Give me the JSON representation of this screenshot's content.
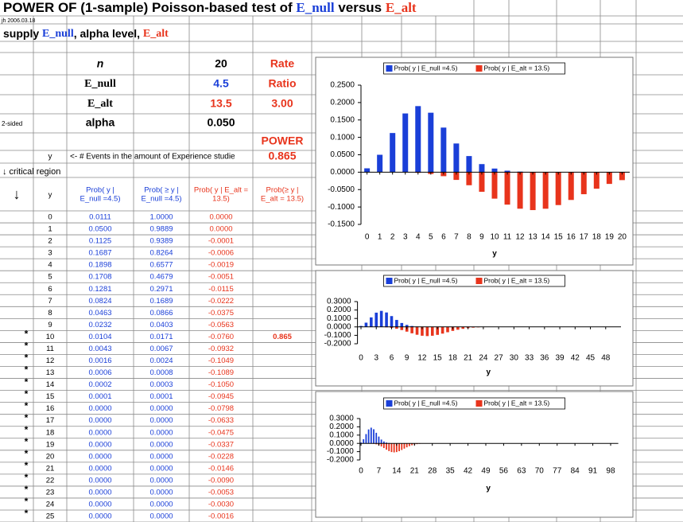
{
  "sheet": {
    "title": [
      "POWER OF (1-sample) Poisson-based test of ",
      "E_null",
      " versus ",
      "E_alt"
    ],
    "author": "jh 2006.03.18",
    "supply": [
      "supply ",
      "E_null",
      ", alpha level, ",
      "E_alt"
    ],
    "params": [
      {
        "label": "n",
        "value": "20",
        "note": "Rate"
      },
      {
        "label": "E_null",
        "value": "4.5",
        "note": "Ratio"
      },
      {
        "label": "E_alt",
        "value": "13.5",
        "note": "3.00"
      },
      {
        "side": "2-sided",
        "label": "alpha",
        "value": "0.050"
      }
    ],
    "power_label": "POWER",
    "power": "0.865",
    "y_label": "y",
    "events_note": "<- # Events in the amount of Experience studie",
    "critical_region": "↓ critical region",
    "arrow": "↓",
    "headers": [
      [
        "y"
      ],
      [
        "Prob( y |",
        "E_null =4.5)"
      ],
      [
        "Prob( ≥ y |",
        "E_null =4.5)"
      ],
      [
        "Prob( y | E_alt =",
        "13.5)"
      ],
      [
        "Prob(≥ y |",
        "E_alt = 13.5)"
      ]
    ],
    "rows": [
      {
        "y": "0",
        "p_null": "0.0111",
        "p_ge": "1.0000",
        "p_alt": "0.0000"
      },
      {
        "y": "1",
        "p_null": "0.0500",
        "p_ge": "0.9889",
        "p_alt": "0.0000"
      },
      {
        "y": "2",
        "p_null": "0.1125",
        "p_ge": "0.9389",
        "p_alt": "-0.0001"
      },
      {
        "y": "3",
        "p_null": "0.1687",
        "p_ge": "0.8264",
        "p_alt": "-0.0006"
      },
      {
        "y": "4",
        "p_null": "0.1898",
        "p_ge": "0.6577",
        "p_alt": "-0.0019"
      },
      {
        "y": "5",
        "p_null": "0.1708",
        "p_ge": "0.4679",
        "p_alt": "-0.0051"
      },
      {
        "y": "6",
        "p_null": "0.1281",
        "p_ge": "0.2971",
        "p_alt": "-0.0115"
      },
      {
        "y": "7",
        "p_null": "0.0824",
        "p_ge": "0.1689",
        "p_alt": "-0.0222"
      },
      {
        "y": "8",
        "p_null": "0.0463",
        "p_ge": "0.0866",
        "p_alt": "-0.0375"
      },
      {
        "y": "9",
        "p_null": "0.0232",
        "p_ge": "0.0403",
        "p_alt": "-0.0563"
      },
      {
        "mark": "*",
        "y": "10",
        "p_null": "0.0104",
        "p_ge": "0.0171",
        "p_alt": "-0.0760",
        "power": "0.865"
      },
      {
        "mark": "*",
        "y": "11",
        "p_null": "0.0043",
        "p_ge": "0.0067",
        "p_alt": "-0.0932"
      },
      {
        "mark": "*",
        "y": "12",
        "p_null": "0.0016",
        "p_ge": "0.0024",
        "p_alt": "-0.1049"
      },
      {
        "mark": "*",
        "y": "13",
        "p_null": "0.0006",
        "p_ge": "0.0008",
        "p_alt": "-0.1089"
      },
      {
        "mark": "*",
        "y": "14",
        "p_null": "0.0002",
        "p_ge": "0.0003",
        "p_alt": "-0.1050"
      },
      {
        "mark": "*",
        "y": "15",
        "p_null": "0.0001",
        "p_ge": "0.0001",
        "p_alt": "-0.0945"
      },
      {
        "mark": "*",
        "y": "16",
        "p_null": "0.0000",
        "p_ge": "0.0000",
        "p_alt": "-0.0798"
      },
      {
        "mark": "*",
        "y": "17",
        "p_null": "0.0000",
        "p_ge": "0.0000",
        "p_alt": "-0.0633"
      },
      {
        "mark": "*",
        "y": "18",
        "p_null": "0.0000",
        "p_ge": "0.0000",
        "p_alt": "-0.0475"
      },
      {
        "mark": "*",
        "y": "19",
        "p_null": "0.0000",
        "p_ge": "0.0000",
        "p_alt": "-0.0337"
      },
      {
        "mark": "*",
        "y": "20",
        "p_null": "0.0000",
        "p_ge": "0.0000",
        "p_alt": "-0.0228"
      },
      {
        "mark": "*",
        "y": "21",
        "p_null": "0.0000",
        "p_ge": "0.0000",
        "p_alt": "-0.0146"
      },
      {
        "mark": "*",
        "y": "22",
        "p_null": "0.0000",
        "p_ge": "0.0000",
        "p_alt": "-0.0090"
      },
      {
        "mark": "*",
        "y": "23",
        "p_null": "0.0000",
        "p_ge": "0.0000",
        "p_alt": "-0.0053"
      },
      {
        "mark": "*",
        "y": "24",
        "p_null": "0.0000",
        "p_ge": "0.0000",
        "p_alt": "-0.0030"
      },
      {
        "mark": "*",
        "y": "25",
        "p_null": "0.0000",
        "p_ge": "0.0000",
        "p_alt": "-0.0016"
      }
    ]
  },
  "chart_data": [
    {
      "type": "bar",
      "x_label": "y",
      "legend": "top",
      "x": [
        0,
        1,
        2,
        3,
        4,
        5,
        6,
        7,
        8,
        9,
        10,
        11,
        12,
        13,
        14,
        15,
        16,
        17,
        18,
        19,
        20
      ],
      "xlim": [
        -0.6,
        20.6
      ],
      "xticks": [
        0,
        1,
        2,
        3,
        4,
        5,
        6,
        7,
        8,
        9,
        10,
        11,
        12,
        13,
        14,
        15,
        16,
        17,
        18,
        19,
        20
      ],
      "ylim": [
        -0.15,
        0.25
      ],
      "yticks": [
        {
          "value": -0.15,
          "label": "-0.1500"
        },
        {
          "value": -0.1,
          "label": "-0.1000"
        },
        {
          "value": -0.05,
          "label": "-0.0500"
        },
        {
          "value": 0,
          "label": "0.0000"
        },
        {
          "value": 0.05,
          "label": "0.0500"
        },
        {
          "value": 0.1,
          "label": "0.1000"
        },
        {
          "value": 0.15,
          "label": "0.1500"
        },
        {
          "value": 0.2,
          "label": "0.2000"
        },
        {
          "value": 0.25,
          "label": "0.2500"
        }
      ],
      "series": [
        {
          "name": "Prob( y | E_null =4.5)",
          "color": "#1a3fd8",
          "values": [
            0.0111,
            0.05,
            0.1125,
            0.1687,
            0.1898,
            0.1708,
            0.1281,
            0.0824,
            0.0463,
            0.0232,
            0.0104,
            0.0043,
            0.0016,
            0.0006,
            0.0002,
            0.0001,
            0,
            0,
            0,
            0,
            0
          ]
        },
        {
          "name": "Prob( y | E_alt = 13.5)",
          "color": "#e8341c",
          "values": [
            0,
            0,
            -0.0001,
            -0.0006,
            -0.0019,
            -0.0051,
            -0.0115,
            -0.0222,
            -0.0375,
            -0.0563,
            -0.076,
            -0.0932,
            -0.1049,
            -0.1089,
            -0.105,
            -0.0945,
            -0.0798,
            -0.0633,
            -0.0475,
            -0.0337,
            -0.0228
          ]
        }
      ]
    },
    {
      "type": "bar",
      "x_label": "y",
      "legend": "top",
      "x": [
        0,
        1,
        2,
        3,
        4,
        5,
        6,
        7,
        8,
        9,
        10,
        11,
        12,
        13,
        14,
        15,
        16,
        17,
        18,
        19,
        20,
        21,
        22,
        23,
        24,
        25,
        26,
        27,
        28,
        29,
        30,
        31,
        32,
        33,
        34,
        35,
        36,
        37,
        38,
        39,
        40,
        41,
        42,
        43,
        44,
        45,
        46,
        47,
        48,
        49,
        50
      ],
      "xlim": [
        -1,
        51
      ],
      "xticks": [
        0,
        3,
        6,
        9,
        12,
        15,
        18,
        21,
        24,
        27,
        30,
        33,
        36,
        39,
        42,
        45,
        48
      ],
      "ylim": [
        -0.2,
        0.3
      ],
      "yticks": [
        {
          "value": -0.2,
          "label": "-0.2000"
        },
        {
          "value": -0.1,
          "label": "-0.1000"
        },
        {
          "value": 0,
          "label": "0.0000"
        },
        {
          "value": 0.1,
          "label": "0.1000"
        },
        {
          "value": 0.2,
          "label": "0.2000"
        },
        {
          "value": 0.3,
          "label": "0.3000"
        }
      ],
      "series": [
        {
          "name": "Prob( y | E_null =4.5)",
          "color": "#1a3fd8",
          "values": [
            0.0111,
            0.05,
            0.1125,
            0.1687,
            0.1898,
            0.1708,
            0.1281,
            0.0824,
            0.0463,
            0.0232,
            0.0104,
            0.0043,
            0.0016,
            0.0006,
            0.0002,
            0.0001,
            0,
            0,
            0,
            0,
            0,
            0,
            0,
            0,
            0,
            0,
            0,
            0,
            0,
            0,
            0,
            0,
            0,
            0,
            0,
            0,
            0,
            0,
            0,
            0,
            0,
            0,
            0,
            0,
            0,
            0,
            0,
            0,
            0,
            0,
            0
          ]
        },
        {
          "name": "Prob( y | E_alt = 13.5)",
          "color": "#e8341c",
          "values": [
            0,
            0,
            -0.0001,
            -0.0006,
            -0.0019,
            -0.0051,
            -0.0115,
            -0.0222,
            -0.0375,
            -0.0563,
            -0.076,
            -0.0932,
            -0.1049,
            -0.1089,
            -0.105,
            -0.0945,
            -0.0798,
            -0.0633,
            -0.0475,
            -0.0337,
            -0.0228,
            -0.0146,
            -0.009,
            -0.0053,
            -0.003,
            -0.0016,
            -0.0008,
            -0.0004,
            -0.0002,
            -0.0001,
            0,
            0,
            0,
            0,
            0,
            0,
            0,
            0,
            0,
            0,
            0,
            0,
            0,
            0,
            0,
            0,
            0,
            0,
            0,
            0,
            0
          ]
        }
      ]
    },
    {
      "type": "bar",
      "x_label": "y",
      "legend": "top",
      "x": [
        0,
        1,
        2,
        3,
        4,
        5,
        6,
        7,
        8,
        9,
        10,
        11,
        12,
        13,
        14,
        15,
        16,
        17,
        18,
        19,
        20,
        21,
        22,
        23,
        24,
        25,
        26,
        27,
        28,
        29,
        30,
        31,
        32,
        33,
        34,
        35,
        36,
        37,
        38,
        39,
        40,
        41,
        42,
        43,
        44,
        45,
        46,
        47,
        48,
        49,
        50,
        51,
        52,
        53,
        54,
        55,
        56,
        57,
        58,
        59,
        60,
        61,
        62,
        63,
        64,
        65,
        66,
        67,
        68,
        69,
        70,
        71,
        72,
        73,
        74,
        75,
        76,
        77,
        78,
        79,
        80,
        81,
        82,
        83,
        84,
        85,
        86,
        87,
        88,
        89,
        90,
        91,
        92,
        93,
        94,
        95,
        96,
        97,
        98,
        99,
        100
      ],
      "xlim": [
        -1,
        101
      ],
      "xticks": [
        0,
        7,
        14,
        21,
        28,
        35,
        42,
        49,
        56,
        63,
        70,
        77,
        84,
        91,
        98
      ],
      "ylim": [
        -0.2,
        0.3
      ],
      "yticks": [
        {
          "value": -0.2,
          "label": "-0.2000"
        },
        {
          "value": -0.1,
          "label": "-0.1000"
        },
        {
          "value": 0,
          "label": "0.0000"
        },
        {
          "value": 0.1,
          "label": "0.1000"
        },
        {
          "value": 0.2,
          "label": "0.2000"
        },
        {
          "value": 0.3,
          "label": "0.3000"
        }
      ],
      "series": [
        {
          "name": "Prob( y | E_null =4.5)",
          "color": "#1a3fd8",
          "values": [
            0.0111,
            0.05,
            0.1125,
            0.1687,
            0.1898,
            0.1708,
            0.1281,
            0.0824,
            0.0463,
            0.0232,
            0.0104,
            0.0043,
            0.0016,
            0.0006,
            0.0002,
            0.0001,
            0,
            0,
            0,
            0,
            0,
            0,
            0,
            0,
            0,
            0,
            0,
            0,
            0,
            0,
            0,
            0,
            0,
            0,
            0,
            0,
            0,
            0,
            0,
            0,
            0,
            0,
            0,
            0,
            0,
            0,
            0,
            0,
            0,
            0,
            0,
            0,
            0,
            0,
            0,
            0,
            0,
            0,
            0,
            0,
            0,
            0,
            0,
            0,
            0,
            0,
            0,
            0,
            0,
            0,
            0,
            0,
            0,
            0,
            0,
            0,
            0,
            0,
            0,
            0,
            0,
            0,
            0,
            0,
            0,
            0,
            0,
            0,
            0,
            0,
            0,
            0,
            0,
            0,
            0,
            0,
            0,
            0,
            0,
            0,
            0
          ]
        },
        {
          "name": "Prob( y | E_alt = 13.5)",
          "color": "#e8341c",
          "values": [
            0,
            0,
            -0.0001,
            -0.0006,
            -0.0019,
            -0.0051,
            -0.0115,
            -0.0222,
            -0.0375,
            -0.0563,
            -0.076,
            -0.0932,
            -0.1049,
            -0.1089,
            -0.105,
            -0.0945,
            -0.0798,
            -0.0633,
            -0.0475,
            -0.0337,
            -0.0228,
            -0.0146,
            -0.009,
            -0.0053,
            -0.003,
            -0.0016,
            -0.0008,
            -0.0004,
            -0.0002,
            -0.0001,
            0,
            0,
            0,
            0,
            0,
            0,
            0,
            0,
            0,
            0,
            0,
            0,
            0,
            0,
            0,
            0,
            0,
            0,
            0,
            0,
            0,
            0,
            0,
            0,
            0,
            0,
            0,
            0,
            0,
            0,
            0,
            0,
            0,
            0,
            0,
            0,
            0,
            0,
            0,
            0,
            0,
            0,
            0,
            0,
            0,
            0,
            0,
            0,
            0,
            0,
            0,
            0,
            0,
            0,
            0,
            0,
            0,
            0,
            0,
            0,
            0,
            0,
            0,
            0,
            0,
            0,
            0,
            0,
            0,
            0,
            0
          ]
        }
      ]
    }
  ]
}
